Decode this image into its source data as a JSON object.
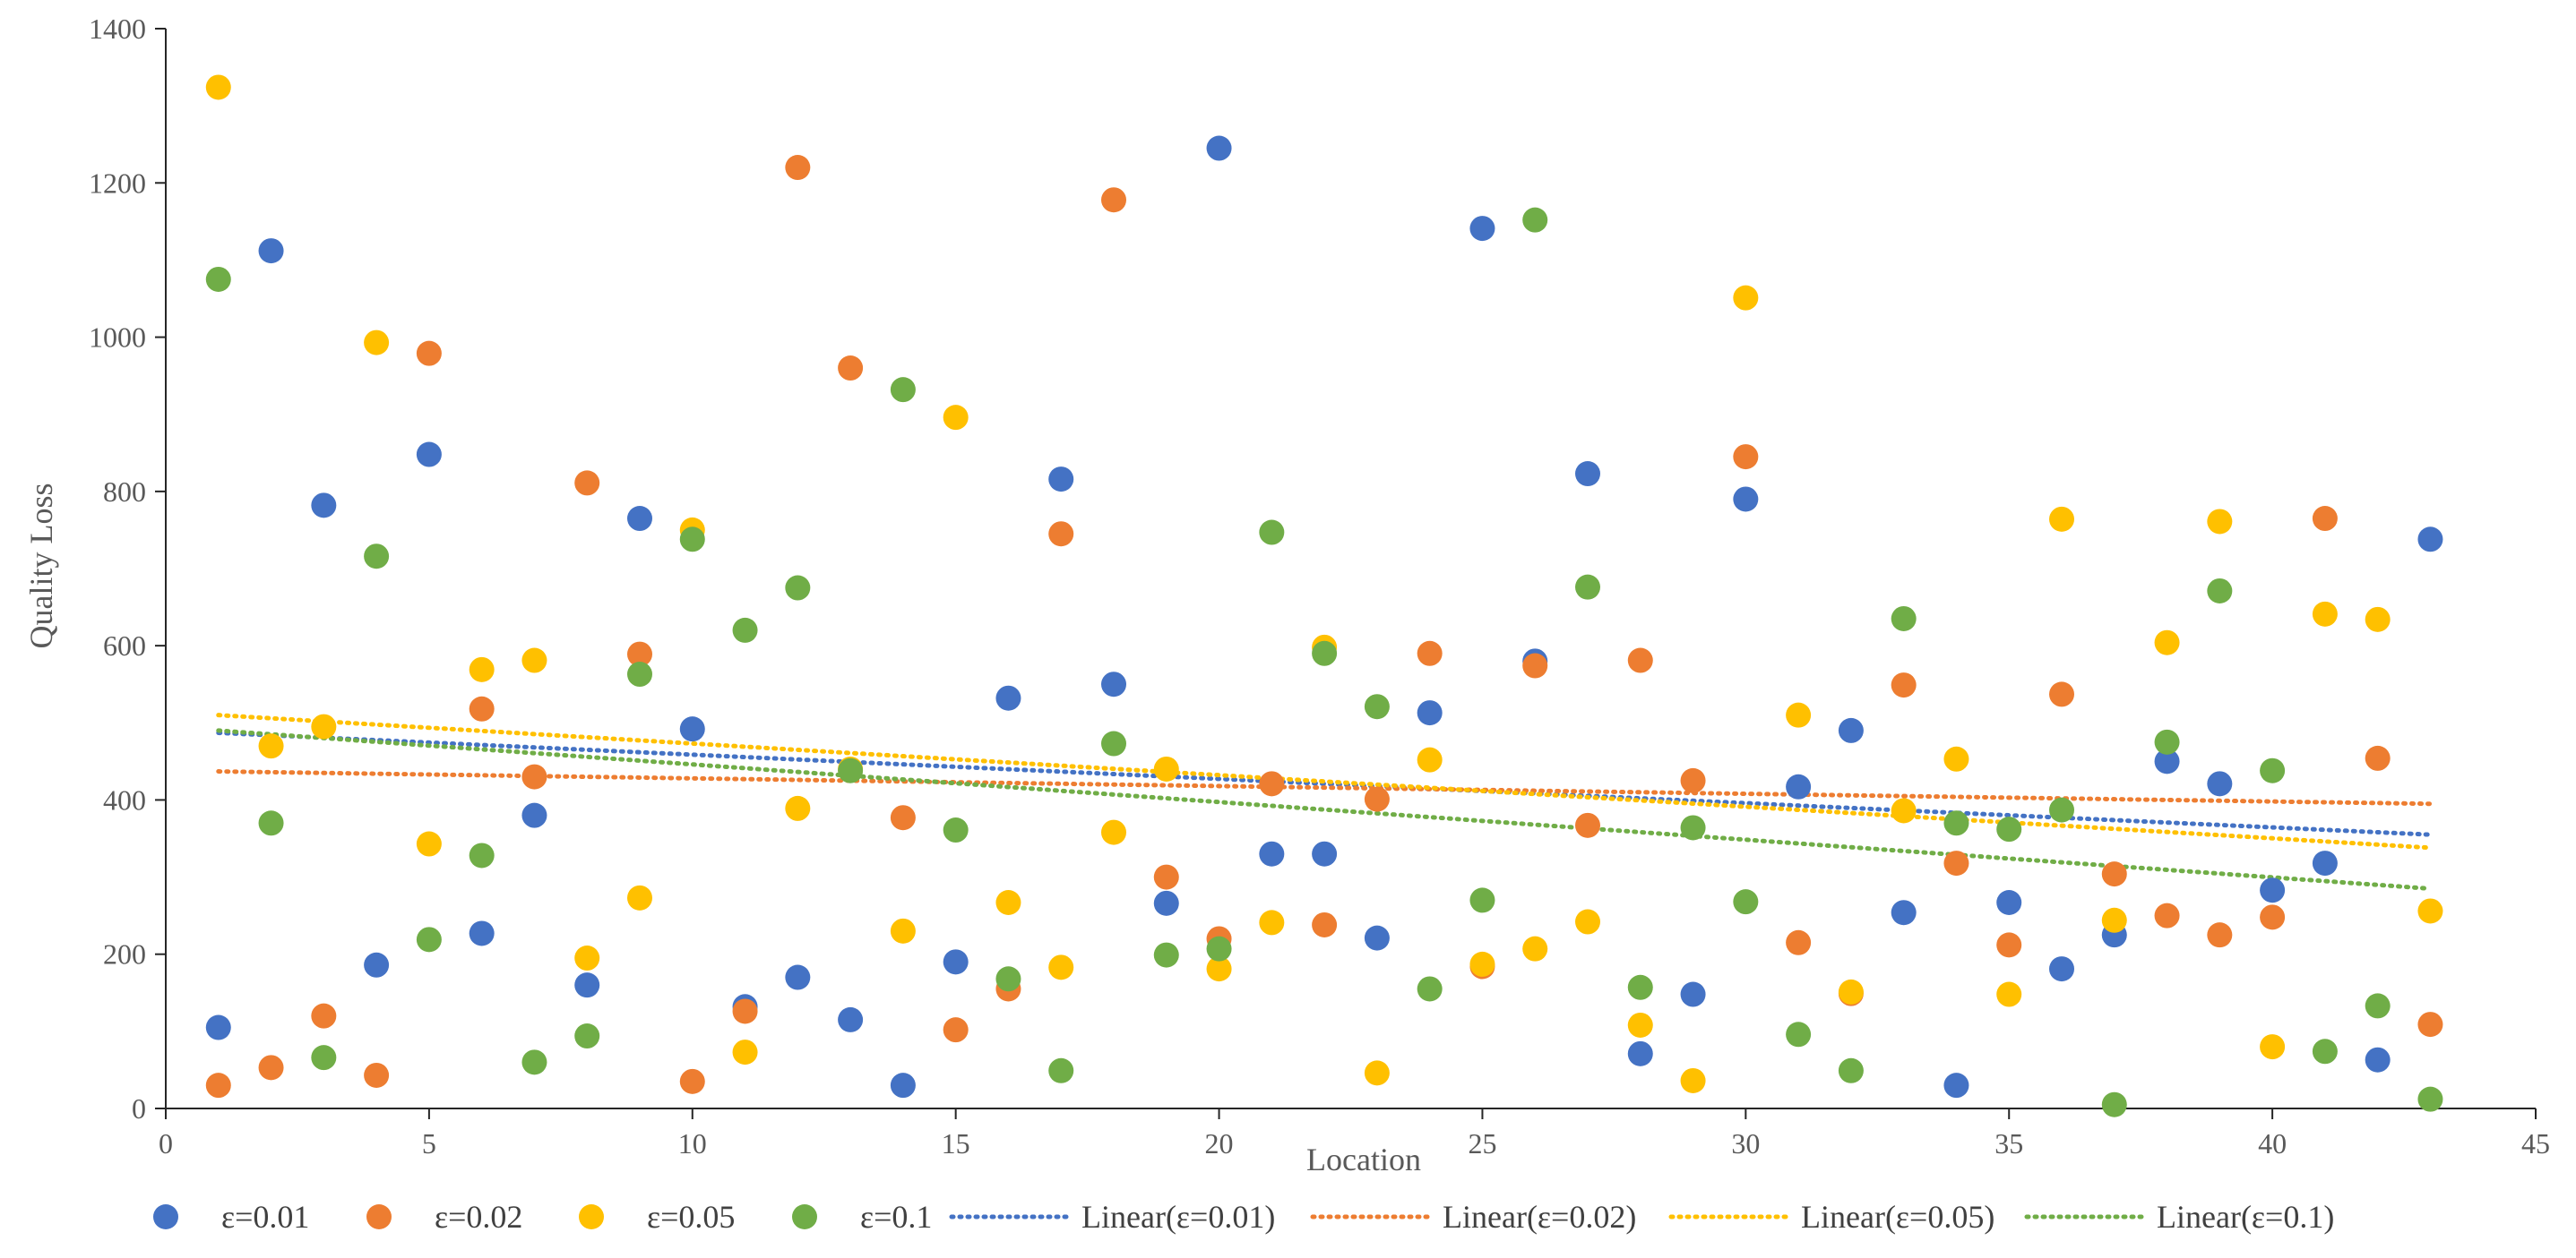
{
  "chart_data": {
    "type": "scatter",
    "title": "",
    "xlabel": "Location",
    "ylabel": "Quality Loss",
    "xlim": [
      0,
      45
    ],
    "ylim": [
      0,
      1400
    ],
    "xticks": [
      0,
      5,
      10,
      15,
      20,
      25,
      30,
      35,
      40,
      45
    ],
    "yticks": [
      0,
      200,
      400,
      600,
      800,
      1000,
      1200,
      1400
    ],
    "grid": false,
    "legend_position": "bottom",
    "x": [
      1,
      2,
      3,
      4,
      5,
      6,
      7,
      8,
      9,
      10,
      11,
      12,
      13,
      14,
      15,
      16,
      17,
      18,
      19,
      20,
      21,
      22,
      23,
      24,
      25,
      26,
      27,
      28,
      29,
      30,
      31,
      32,
      33,
      34,
      35,
      36,
      37,
      38,
      39,
      40,
      41,
      42,
      43
    ],
    "series": [
      {
        "name": "ε=0.01",
        "color": "#4472C4",
        "values": [
          105,
          1112,
          782,
          186,
          848,
          227,
          380,
          160,
          765,
          492,
          132,
          170,
          115,
          30,
          190,
          532,
          816,
          550,
          266,
          1245,
          330,
          330,
          221,
          513,
          1141,
          580,
          823,
          71,
          148,
          790,
          417,
          490,
          254,
          30,
          267,
          181,
          225,
          450,
          421,
          283,
          318,
          63,
          738
        ]
      },
      {
        "name": "ε=0.02",
        "color": "#ED7D31",
        "values": [
          30,
          53,
          120,
          43,
          979,
          518,
          430,
          811,
          589,
          35,
          126,
          1220,
          960,
          377,
          102,
          155,
          745,
          1178,
          300,
          220,
          421,
          238,
          401,
          590,
          184,
          574,
          367,
          581,
          425,
          845,
          215,
          149,
          549,
          318,
          212,
          537,
          304,
          250,
          225,
          248,
          765,
          454,
          109
        ]
      },
      {
        "name": "ε=0.05",
        "color": "#FFC000",
        "values": [
          1324,
          470,
          495,
          993,
          343,
          569,
          581,
          195,
          273,
          750,
          73,
          389,
          440,
          230,
          896,
          267,
          183,
          358,
          440,
          181,
          241,
          598,
          46,
          452,
          187,
          207,
          242,
          108,
          36,
          1051,
          510,
          151,
          386,
          453,
          148,
          764,
          244,
          604,
          761,
          80,
          641,
          634,
          256
        ]
      },
      {
        "name": "ε=0.1",
        "color": "#70AD47",
        "values": [
          1075,
          370,
          66,
          716,
          219,
          328,
          60,
          94,
          563,
          738,
          620,
          675,
          438,
          932,
          361,
          168,
          49,
          473,
          199,
          207,
          747,
          590,
          521,
          155,
          270,
          1152,
          676,
          157,
          364,
          268,
          96,
          49,
          635,
          370,
          362,
          387,
          5,
          475,
          671,
          438,
          74,
          133,
          12
        ]
      }
    ],
    "trendlines": [
      {
        "name": "Linear(ε=0.01)",
        "color": "#4472C4",
        "start": [
          1,
          487
        ],
        "end": [
          43,
          355
        ]
      },
      {
        "name": "Linear(ε=0.02)",
        "color": "#ED7D31",
        "start": [
          1,
          437
        ],
        "end": [
          43,
          395
        ]
      },
      {
        "name": "Linear(ε=0.05)",
        "color": "#FFC000",
        "start": [
          1,
          510
        ],
        "end": [
          43,
          338
        ]
      },
      {
        "name": "Linear(ε=0.1)",
        "color": "#70AD47",
        "start": [
          1,
          490
        ],
        "end": [
          43,
          285
        ]
      }
    ]
  }
}
